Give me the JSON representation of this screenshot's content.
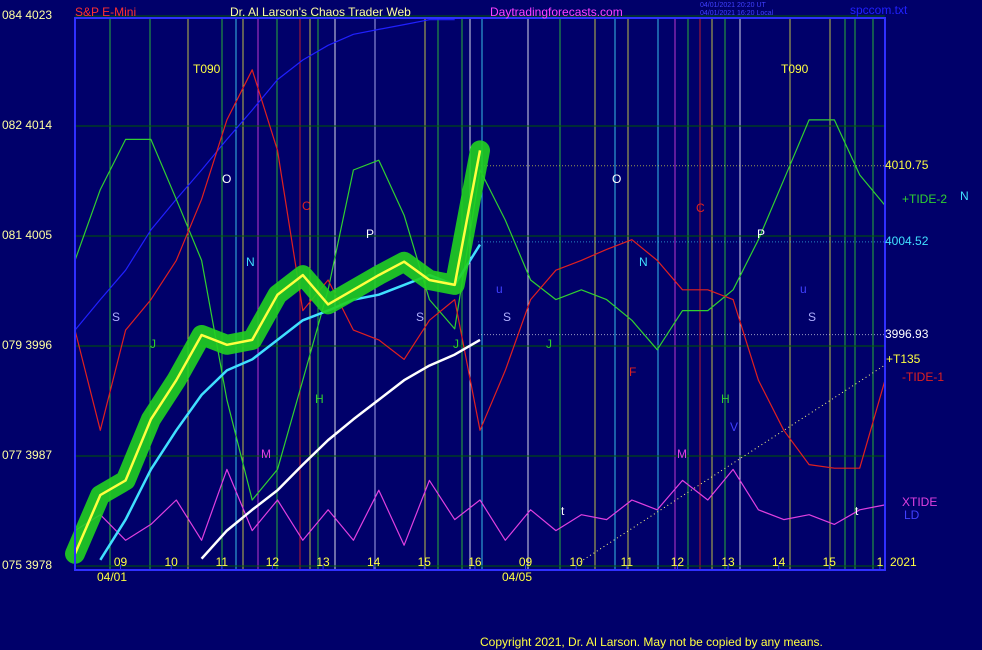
{
  "chart_data": {
    "type": "line",
    "title": "Dr. Al Larson's Chaos Trader Web",
    "instrument": "S&P E-Mini",
    "site": "Daytradingforecasts.com",
    "file": "spccom.txt",
    "timestamps": [
      "04/01/2021 20:20 UT",
      "04/01/2021 16:20 Local"
    ],
    "copyright": "Copyright 2021, Dr. Al Larson. May not be copied by any means.",
    "x": [
      0,
      0.5,
      1,
      1.5,
      2,
      2.5,
      3,
      3.5,
      4,
      4.5,
      5,
      5.5,
      6,
      6.5,
      7,
      7.5,
      8,
      8.5,
      9,
      9.5,
      10,
      10.5,
      11,
      11.5,
      12,
      12.5,
      13,
      13.5,
      14,
      14.5,
      15,
      15.5,
      16
    ],
    "xlim": [
      0,
      16
    ],
    "xticks": [
      {
        "value": 0.9,
        "label": "09"
      },
      {
        "value": 1.9,
        "label": "10"
      },
      {
        "value": 2.9,
        "label": "11"
      },
      {
        "value": 3.9,
        "label": "12"
      },
      {
        "value": 4.9,
        "label": "13"
      },
      {
        "value": 5.9,
        "label": "14"
      },
      {
        "value": 6.9,
        "label": "15"
      },
      {
        "value": 7.9,
        "label": "16"
      },
      {
        "value": 8.9,
        "label": "09"
      },
      {
        "value": 9.9,
        "label": "10"
      },
      {
        "value": 10.9,
        "label": "11"
      },
      {
        "value": 11.9,
        "label": "12"
      },
      {
        "value": 12.9,
        "label": "13"
      },
      {
        "value": 13.9,
        "label": "14"
      },
      {
        "value": 14.9,
        "label": "15"
      },
      {
        "value": 15.9,
        "label": "1"
      }
    ],
    "dates": [
      "04/01",
      "04/05"
    ],
    "ylim": [
      3978,
      4023
    ],
    "yticks": [
      {
        "value": 4023,
        "label": "084 4023"
      },
      {
        "value": 4014,
        "label": "082 4014"
      },
      {
        "value": 4005,
        "label": "081 4005"
      },
      {
        "value": 3996,
        "label": "079 3996"
      },
      {
        "value": 3987,
        "label": "077 3987"
      },
      {
        "value": 3978,
        "label": "075 3978"
      }
    ],
    "grid": true,
    "levels": [
      4010.75,
      4004.52,
      3996.93
    ],
    "series": [
      {
        "color": "#2020ff",
        "values": [
          3997.3,
          3999.8,
          4002.2,
          4005.5,
          4008.0,
          4010.4,
          4012.9,
          4015.3,
          4017.8,
          4019.4,
          4020.6,
          4021.5,
          4021.9,
          4022.3,
          4022.7,
          4022.7,
          null,
          null,
          null,
          null,
          null,
          null,
          null,
          null,
          null,
          null,
          null,
          null,
          null,
          null,
          null,
          null,
          null
        ]
      },
      {
        "name": "+TIDE-2",
        "color": "#30d030",
        "values": [
          4003.0,
          4008.8,
          4012.9,
          4012.9,
          4008.0,
          4003.0,
          3991.6,
          3983.4,
          3985.9,
          3993.2,
          4000.6,
          4010.4,
          4011.2,
          4006.7,
          3999.8,
          3997.4,
          4010.4,
          4006.3,
          4001.4,
          3999.8,
          4000.6,
          3999.8,
          3998.1,
          3995.7,
          3998.9,
          3998.9,
          4000.6,
          4004.7,
          4009.6,
          4014.5,
          4014.5,
          4010.0,
          4007.5
        ]
      },
      {
        "name": "-TIDE-1",
        "color": "#e02020",
        "values": [
          3997.3,
          3989.1,
          3997.3,
          3999.8,
          4003.0,
          4008.0,
          4014.5,
          4018.6,
          4012.0,
          3998.9,
          4001.4,
          3997.3,
          3996.5,
          3994.9,
          3998.1,
          3999.8,
          3989.1,
          3994.0,
          3999.8,
          4002.2,
          4003.0,
          4003.9,
          4004.7,
          4003.0,
          4000.6,
          4000.6,
          3999.8,
          3993.2,
          3989.1,
          3986.3,
          3986.0,
          3986.0,
          3993.2
        ]
      },
      {
        "name": "XTIDE",
        "color": "#e040e0",
        "values": [
          3980.9,
          3982.2,
          3980.1,
          3981.4,
          3983.4,
          3980.1,
          3985.9,
          3980.9,
          3983.4,
          3980.1,
          3982.6,
          3980.1,
          3984.2,
          3979.7,
          3985.0,
          3981.8,
          3983.4,
          3980.1,
          3982.6,
          3980.9,
          3982.2,
          3981.8,
          3983.4,
          3982.6,
          3985.0,
          3983.4,
          3985.9,
          3982.6,
          3981.8,
          3982.2,
          3981.4,
          3982.6,
          3983.0
        ]
      },
      {
        "color": "#ffffff",
        "values": [
          null,
          null,
          null,
          null,
          null,
          3978.6,
          3980.9,
          3982.6,
          3984.2,
          3986.3,
          3988.3,
          3990.0,
          3991.6,
          3993.2,
          3994.4,
          3995.3,
          3996.5,
          null,
          null,
          null,
          null,
          null,
          null,
          null,
          null,
          null,
          null,
          null,
          null,
          null,
          null,
          null,
          null
        ]
      },
      {
        "color": "#40e0ff",
        "values": [
          null,
          3978.5,
          3981.8,
          3985.9,
          3989.1,
          3992.0,
          3994.0,
          3994.9,
          3996.5,
          3998.1,
          3998.9,
          3999.8,
          4000.2,
          4001.0,
          4001.8,
          4001.0,
          4004.3,
          null,
          null,
          null,
          null,
          null,
          null,
          null,
          null,
          null,
          null,
          null,
          null,
          null,
          null,
          null,
          null
        ]
      },
      {
        "color": "#ffff40",
        "values": [
          3979.0,
          3983.8,
          3985.0,
          3990.0,
          3993.2,
          3996.9,
          3996.1,
          3996.5,
          4000.2,
          4001.8,
          3999.4,
          4000.6,
          4001.8,
          4002.9,
          4001.4,
          4001.0,
          4012.0,
          null,
          null,
          null,
          null,
          null,
          null,
          null,
          null,
          null,
          null,
          null,
          null,
          null,
          null,
          null,
          null
        ]
      }
    ],
    "annotations": [
      "T090",
      "T090",
      "O",
      "O",
      "N",
      "N",
      "C",
      "C",
      "P",
      "P",
      "S",
      "S",
      "S",
      "S",
      "J",
      "J",
      "J",
      "H",
      "H",
      "M",
      "M",
      "F",
      "V",
      "u",
      "u",
      "t",
      "t"
    ],
    "right_labels": [
      "N",
      "+T135",
      "LD",
      "2021"
    ]
  }
}
